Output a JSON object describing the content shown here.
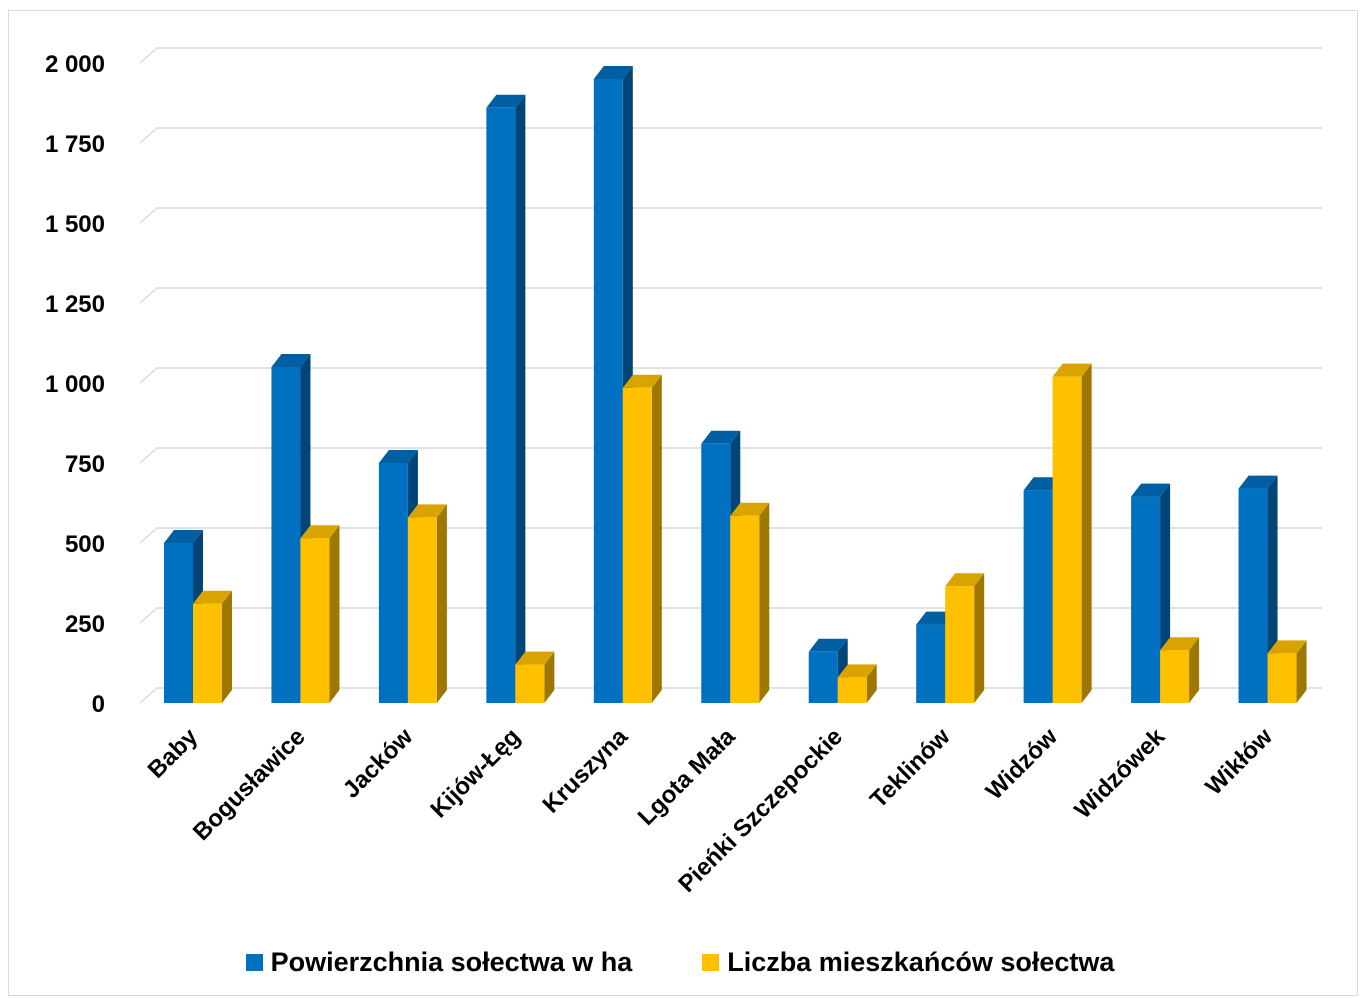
{
  "chart_data": {
    "type": "bar",
    "categories": [
      "Baby",
      "Bogusławice",
      "Jacków",
      "Kijów-Łęg",
      "Kruszyna",
      "Lgota Mała",
      "Pieńki Szczepockie",
      "Teklinów",
      "Widzów",
      "Widzówek",
      "Wikłów"
    ],
    "series": [
      {
        "name": "Powierzchnia sołectwa w ha",
        "color": "#0070c0",
        "values": [
          500,
          1050,
          750,
          1860,
          1950,
          810,
          160,
          245,
          665,
          645,
          670
        ]
      },
      {
        "name": "Liczba mieszkańców sołectwa",
        "color": "#ffc000",
        "values": [
          310,
          515,
          580,
          120,
          985,
          585,
          80,
          365,
          1020,
          165,
          155
        ]
      }
    ],
    "yticks": [
      "0",
      "250",
      "500",
      "750",
      "1 000",
      "1 250",
      "1 500",
      "1 750",
      "2 000"
    ],
    "ylim": [
      0,
      2000
    ],
    "grid": true,
    "style": "3d-clustered-column",
    "legend_position": "bottom"
  }
}
